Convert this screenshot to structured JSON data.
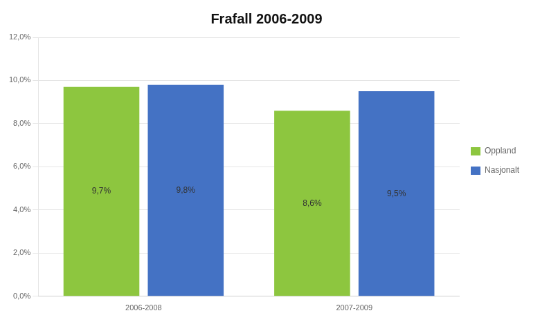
{
  "chart_data": {
    "type": "bar",
    "title": "Frafall 2006-2009",
    "categories": [
      "2006-2008",
      "2007-2009"
    ],
    "series": [
      {
        "name": "Oppland",
        "color": "#8DC63F",
        "values": [
          0.097,
          0.086
        ],
        "value_labels": [
          "9,7%",
          "8,6%"
        ]
      },
      {
        "name": "Nasjonalt",
        "color": "#4472C4",
        "values": [
          0.098,
          0.095
        ],
        "value_labels": [
          "9,8%",
          "9,5%"
        ]
      }
    ],
    "ylim": [
      0,
      0.12
    ],
    "yticks": [
      {
        "value": 0.0,
        "label": "0,0%"
      },
      {
        "value": 0.02,
        "label": "2,0%"
      },
      {
        "value": 0.04,
        "label": "4,0%"
      },
      {
        "value": 0.06,
        "label": "6,0%"
      },
      {
        "value": 0.08,
        "label": "8,0%"
      },
      {
        "value": 0.1,
        "label": "10,0%"
      },
      {
        "value": 0.12,
        "label": "12,0%"
      }
    ],
    "grid": true,
    "legend": "right",
    "data_labels": true
  }
}
